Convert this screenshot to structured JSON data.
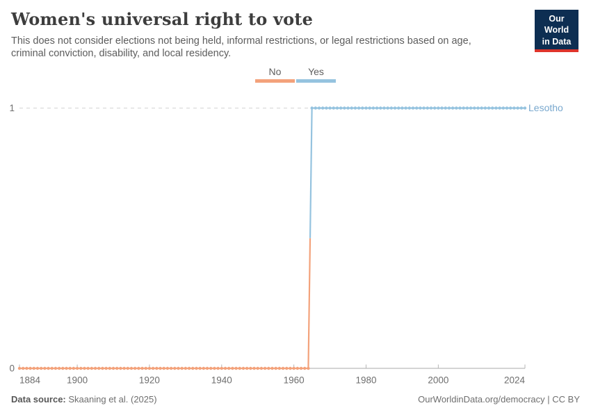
{
  "header": {
    "title": "Women's universal right to vote",
    "subtitle": "This does not consider elections not being held, informal restrictions, or legal restrictions based on age, criminal conviction, disability, and local residency."
  },
  "logo": {
    "line1": "Our World",
    "line2": "in Data",
    "bg_color": "#0D2E52",
    "accent_color": "#DE342B"
  },
  "legend": {
    "items": [
      {
        "label": "No",
        "color": "#F3A27B"
      },
      {
        "label": "Yes",
        "color": "#95C3DF"
      }
    ]
  },
  "chart_data": {
    "type": "line",
    "title": "Women's universal right to vote",
    "entity": "Lesotho",
    "entity_label_color": "#79A8CE",
    "xlim": [
      1884,
      2024
    ],
    "ylim": [
      0,
      1
    ],
    "x_ticks": [
      1884,
      1900,
      1920,
      1940,
      1960,
      1980,
      2000,
      2024
    ],
    "y_ticks": [
      0,
      1
    ],
    "grid": {
      "dashed_at": 1,
      "solid_baseline_at": 0
    },
    "legend_position": "top-center",
    "markers": "one dot per year",
    "series": [
      {
        "name": "No",
        "color": "#F3A27B",
        "start_year": 1884,
        "end_year": 1964,
        "value": 0
      },
      {
        "name": "Yes",
        "color": "#95C3DF",
        "start_year": 1965,
        "end_year": 2024,
        "value": 1
      }
    ],
    "transition": {
      "from_year": 1964,
      "from_value": 0,
      "to_year": 1965,
      "to_value": 1
    }
  },
  "footer": {
    "datasource_label": "Data source:",
    "datasource_value": "Skaaning et al. (2025)",
    "credit": "OurWorldinData.org/democracy | CC BY"
  },
  "colors": {
    "dashed_gridline": "#d4d4d4",
    "axis_line": "#a8a8a8",
    "tick_mark": "#b5b5b5",
    "tick_label": "#6e6e6e"
  }
}
